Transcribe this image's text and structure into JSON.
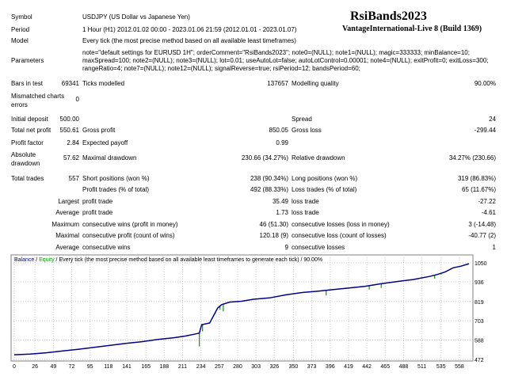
{
  "header": {
    "title": "RsiBands2023",
    "subtitle": "VantageInternational-Live 8 (Build 1369)"
  },
  "info": {
    "symbol_label": "Symbol",
    "symbol_value": "USDJPY (US Dollar vs Japanese Yen)",
    "period_label": "Period",
    "period_value": "1 Hour (H1) 2012.01.02 00:00 - 2023.01.06 21:59 (2012.01.01 - 2023.01.07)",
    "model_label": "Model",
    "model_value": "Every tick (the most precise method based on all available least timeframes)",
    "parameters_label": "Parameters",
    "parameters_value": "note=\"default settings for EURUSD 1H\"; orderComment=\"RsiBands2023\"; note0=(NULL); note1=(NULL); magic=333333; minBalance=10; maxSpread=100; note2=(NULL); note3=(NULL); lot=0.01; useAutoLot=false; autoLotControl=0.00001; note4=(NULL); exitProfit=0; exitLoss=300; rangeRatio=4; note7=(NULL); note12=(NULL); signalReverse=true; rsiPeriod=12; bandsPeriod=60;"
  },
  "stats": {
    "bars_label": "Bars in test",
    "bars_value": "69341",
    "ticks_label": "Ticks modelled",
    "ticks_value": "137657",
    "quality_label": "Modelling quality",
    "quality_value": "90.00%",
    "mismatch_label": "Mismatched charts errors",
    "mismatch_value": "0",
    "deposit_label": "Initial deposit",
    "deposit_value": "500.00",
    "spread_label": "Spread",
    "spread_value": "24",
    "netprofit_label": "Total net profit",
    "netprofit_value": "550.61",
    "grossprofit_label": "Gross profit",
    "grossprofit_value": "850.05",
    "grossloss_label": "Gross loss",
    "grossloss_value": "-299.44",
    "pf_label": "Profit factor",
    "pf_value": "2.84",
    "payoff_label": "Expected payoff",
    "payoff_value": "0.99",
    "absdd_label": "Absolute drawdown",
    "absdd_value": "57.62",
    "maxdd_label": "Maximal drawdown",
    "maxdd_value": "230.66 (34.27%)",
    "reldd_label": "Relative drawdown",
    "reldd_value": "34.27% (230.66)",
    "trades_label": "Total trades",
    "trades_value": "557",
    "short_label": "Short positions (won %)",
    "short_value": "238 (90.34%)",
    "long_label": "Long positions (won %)",
    "long_value": "319 (86.83%)",
    "profittrades_label": "Profit trades (% of total)",
    "profittrades_value": "492 (88.33%)",
    "losstrades_label": "Loss trades (% of total)",
    "losstrades_value": "65 (11.67%)",
    "largest_label": "Largest",
    "largest_profit_label": "profit trade",
    "largest_profit_value": "35.49",
    "largest_loss_label": "loss trade",
    "largest_loss_value": "-27.22",
    "average_label": "Average",
    "average_profit_label": "profit trade",
    "average_profit_value": "1.73",
    "average_loss_label": "loss trade",
    "average_loss_value": "-4.61",
    "maximum_label": "Maximum",
    "max_wins_label": "consecutive wins (profit in money)",
    "max_wins_value": "46 (51.30)",
    "max_losses_label": "consecutive losses (loss in money)",
    "max_losses_value": "3 (-14.48)",
    "maximal_label": "Maximal",
    "maximal_profit_label": "consecutive profit (count of wins)",
    "maximal_profit_value": "120.18 (9)",
    "maximal_loss_label": "consecutive loss (count of losses)",
    "maximal_loss_value": "-40.77 (2)",
    "avgcons_label": "Average",
    "avg_wins_label": "consecutive wins",
    "avg_wins_value": "9",
    "avg_losses_label": "consecutive losses",
    "avg_losses_value": "1"
  },
  "chart_data": {
    "type": "line",
    "legend_balance": "Balance",
    "legend_sep1": " / ",
    "legend_equity": "Equity",
    "legend_rest": " / Every tick (the most precise method based on all available least timeframes to generate each tick) / 90.00%",
    "x_ticks": [
      "0",
      "26",
      "49",
      "72",
      "95",
      "118",
      "141",
      "165",
      "188",
      "211",
      "234",
      "257",
      "280",
      "303",
      "326",
      "350",
      "373",
      "396",
      "419",
      "442",
      "465",
      "488",
      "511",
      "535",
      "558"
    ],
    "y_ticks": [
      "1050",
      "936",
      "819",
      "703",
      "588",
      "472"
    ],
    "ylim": [
      472,
      1050
    ],
    "xlim": [
      0,
      570
    ],
    "colors": {
      "balance": "#00008b",
      "equity": "#00a000",
      "grid": "#c8c8c8"
    },
    "balance_series": [
      [
        0,
        500
      ],
      [
        20,
        504
      ],
      [
        40,
        512
      ],
      [
        60,
        522
      ],
      [
        80,
        532
      ],
      [
        100,
        544
      ],
      [
        120,
        556
      ],
      [
        140,
        568
      ],
      [
        160,
        578
      ],
      [
        180,
        592
      ],
      [
        200,
        602
      ],
      [
        215,
        612
      ],
      [
        225,
        622
      ],
      [
        232,
        630
      ],
      [
        235,
        680
      ],
      [
        245,
        690
      ],
      [
        255,
        780
      ],
      [
        260,
        800
      ],
      [
        270,
        815
      ],
      [
        285,
        820
      ],
      [
        300,
        832
      ],
      [
        320,
        840
      ],
      [
        340,
        858
      ],
      [
        360,
        872
      ],
      [
        380,
        880
      ],
      [
        400,
        890
      ],
      [
        420,
        900
      ],
      [
        440,
        910
      ],
      [
        460,
        925
      ],
      [
        480,
        938
      ],
      [
        500,
        950
      ],
      [
        520,
        968
      ],
      [
        530,
        980
      ],
      [
        540,
        995
      ],
      [
        550,
        1020
      ],
      [
        560,
        1030
      ],
      [
        570,
        1045
      ]
    ],
    "equity_dips": [
      [
        232,
        550
      ],
      [
        236,
        640
      ],
      [
        252,
        745
      ],
      [
        258,
        770
      ],
      [
        262,
        760
      ],
      [
        391,
        855
      ],
      [
        445,
        890
      ],
      [
        460,
        900
      ],
      [
        527,
        955
      ],
      [
        535,
        980
      ]
    ]
  }
}
